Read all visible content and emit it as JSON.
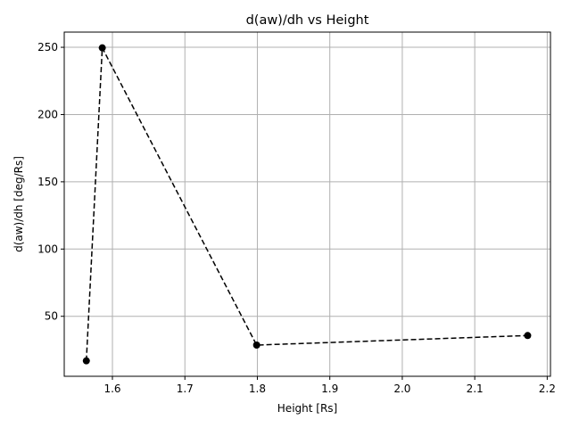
{
  "chart_data": {
    "type": "line",
    "title": "d(aw)/dh vs Height",
    "xlabel": "Height [Rs]",
    "ylabel": "d(aw)/dh [deg/Rs]",
    "xlim": [
      1.5335,
      2.2045
    ],
    "ylim": [
      5.4,
      261.3
    ],
    "xticks": [
      1.6,
      1.7,
      1.8,
      1.9,
      2.0,
      2.1,
      2.2
    ],
    "xtick_labels": [
      "1.6",
      "1.7",
      "1.8",
      "1.9",
      "2.0",
      "2.1",
      "2.2"
    ],
    "yticks": [
      50,
      100,
      150,
      200,
      250
    ],
    "ytick_labels": [
      "50",
      "100",
      "150",
      "200",
      "250"
    ],
    "grid": true,
    "series": [
      {
        "color": "#000000",
        "line_style": "dashed",
        "marker": "circle",
        "x": [
          1.564,
          1.586,
          1.799,
          2.173
        ],
        "y": [
          16.9,
          249.6,
          28.6,
          35.7
        ]
      }
    ]
  }
}
